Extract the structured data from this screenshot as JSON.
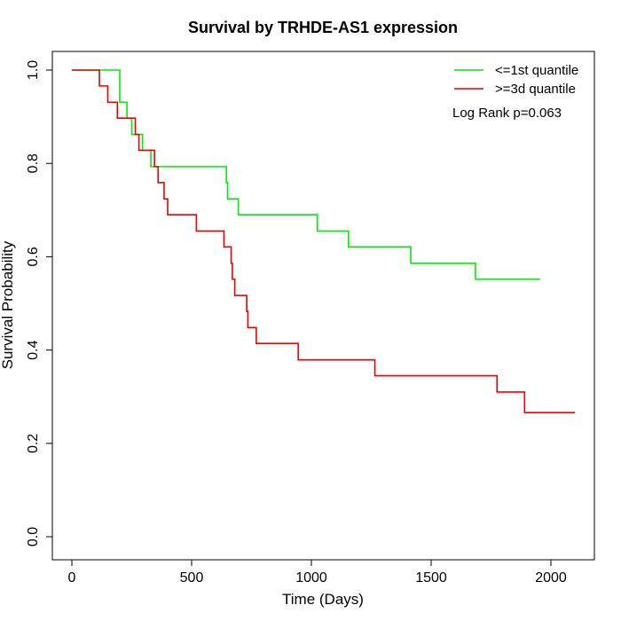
{
  "chart_data": {
    "type": "line",
    "title": "Survival by TRHDE-AS1 expression",
    "xlabel": "Time (Days)",
    "ylabel": "Survival Probability",
    "xlim": [
      0,
      2100
    ],
    "ylim": [
      0,
      1
    ],
    "xticks": [
      0,
      500,
      1000,
      1500,
      2000
    ],
    "xtick_labels": [
      "0",
      "500",
      "1000",
      "1500",
      "2000"
    ],
    "yticks": [
      0,
      0.2,
      0.4,
      0.6,
      0.8,
      1
    ],
    "ytick_labels": [
      "0.0",
      "0.2",
      "0.4",
      "0.6",
      "0.8",
      "1.0"
    ],
    "grid": false,
    "legend_position": "top-right",
    "annotation": "Log Rank p=0.063",
    "series": [
      {
        "name": "<=1st quantile",
        "color": "#00ee00",
        "step": true,
        "x": [
          0,
          200,
          230,
          250,
          295,
          330,
          640,
          645,
          650,
          695,
          1025,
          1155,
          1415,
          1685,
          1955
        ],
        "y": [
          1.0,
          0.931,
          0.897,
          0.862,
          0.828,
          0.793,
          0.793,
          0.759,
          0.724,
          0.69,
          0.655,
          0.621,
          0.586,
          0.552,
          0.552
        ]
      },
      {
        "name": ">=3d quantile",
        "color": "#ee0000",
        "step": true,
        "x": [
          0,
          115,
          150,
          190,
          265,
          280,
          305,
          345,
          360,
          385,
          400,
          520,
          635,
          665,
          670,
          680,
          690,
          730,
          735,
          745,
          770,
          945,
          1265,
          1775,
          1890,
          2100
        ],
        "y": [
          1.0,
          0.966,
          0.931,
          0.897,
          0.862,
          0.828,
          0.828,
          0.793,
          0.759,
          0.724,
          0.69,
          0.655,
          0.621,
          0.586,
          0.552,
          0.517,
          0.517,
          0.483,
          0.448,
          0.448,
          0.414,
          0.379,
          0.345,
          0.31,
          0.266,
          0.266
        ]
      }
    ]
  }
}
